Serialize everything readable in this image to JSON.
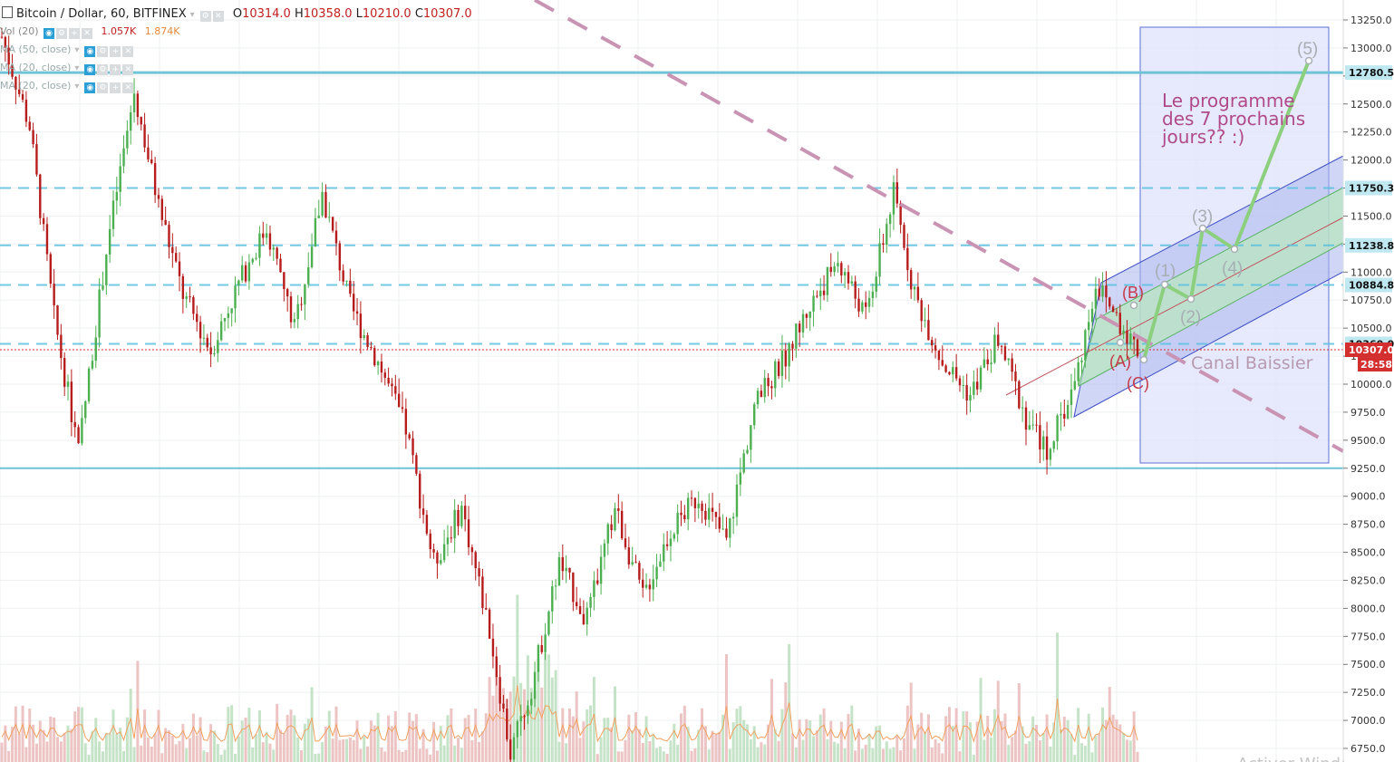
{
  "header": {
    "symbol": "Bitcoin / Dollar, 60, BITFINEX",
    "symbol_icon": "square-icon",
    "ohlc": {
      "o_label": "O",
      "o_value": "10314.0",
      "h_label": "H",
      "h_value": "10358.0",
      "l_label": "L",
      "l_value": "10210.0",
      "c_label": "C",
      "c_value": "10307.0"
    },
    "volume": {
      "label": "Vol (20)",
      "value1": "1.057K",
      "value2": "1.874K"
    },
    "indicators": [
      "MA (50, close)",
      "MA (20, close)",
      "MA (20, close)"
    ]
  },
  "colors": {
    "up": "#4caf50",
    "down": "#b71c1c",
    "level": "#5bc0de",
    "level_strong": "#6fc3d6",
    "trend": "#c994b4",
    "channel_fill": "#aab4ee",
    "channel_inner": "#b9e6c0",
    "box_fill": "#dfe3fb",
    "box_stroke": "#5d6fd6",
    "wave_grey": "#a7aeb3",
    "wave_red": "#c53a4a",
    "wave_path": "#8cd07f",
    "price_red": "#d32f2f"
  },
  "annotations": {
    "program_text_line1": "Le programme",
    "program_text_line2": "des 7 prochains",
    "program_text_line3": "jours?? :)",
    "canal": "Canal Baissier",
    "waves": [
      "(1)",
      "(2)",
      "(3)",
      "(4)",
      "(5)"
    ],
    "abc": [
      "(A)",
      "(B)",
      "(C)"
    ],
    "watermark": "Activer Windows"
  },
  "chart_data": {
    "type": "candlestick",
    "title": "Bitcoin / Dollar, 60, BITFINEX",
    "price_scale": {
      "range": [
        6550,
        13450
      ],
      "ticks": [
        13250,
        13000,
        12750,
        12500,
        12250,
        12000,
        11750,
        11500,
        11250,
        11000,
        10750,
        10500,
        10250,
        10000,
        9750,
        9500,
        9250,
        9000,
        8750,
        8500,
        8250,
        8000,
        7750,
        7500,
        7250,
        7000,
        6750
      ],
      "tick_labels": [
        "13250.0",
        "13000.0",
        "12750.0",
        "12500.0",
        "12250.0",
        "12000.0",
        "11750.0",
        "11500.0",
        "11250.0",
        "11000.0",
        "10750.0",
        "10500.0",
        "10250.0",
        "10000.0",
        "9750.0",
        "9500.0",
        "9250.0",
        "9000.0",
        "8750.0",
        "8500.0",
        "8250.0",
        "8000.0",
        "7750.0",
        "7500.0",
        "7250.0",
        "7000.0",
        "6750.0"
      ]
    },
    "horizontal_levels": [
      {
        "value": 12780.5,
        "label": "12780.5",
        "style": "solid"
      },
      {
        "value": 11750.3,
        "label": "11750.3",
        "style": "dashed"
      },
      {
        "value": 11238.8,
        "label": "11238.8",
        "style": "dashed"
      },
      {
        "value": 10884.8,
        "label": "10884.8",
        "style": "dashed"
      },
      {
        "value": 10360.0,
        "label": "10360.0",
        "style": "dashed"
      },
      {
        "value": 9250.0,
        "label": "",
        "style": "solid"
      }
    ],
    "last_price": {
      "value": 10307.0,
      "label": "10307.0",
      "countdown": "28:58"
    },
    "price_path": [
      [
        0,
        13100
      ],
      [
        8,
        12300
      ],
      [
        15,
        10600
      ],
      [
        22,
        9400
      ],
      [
        30,
        11200
      ],
      [
        38,
        12600
      ],
      [
        45,
        11600
      ],
      [
        52,
        10800
      ],
      [
        60,
        10300
      ],
      [
        68,
        10900
      ],
      [
        76,
        11400
      ],
      [
        84,
        10500
      ],
      [
        92,
        11700
      ],
      [
        100,
        10700
      ],
      [
        108,
        10200
      ],
      [
        116,
        9600
      ],
      [
        124,
        8400
      ],
      [
        132,
        8900
      ],
      [
        140,
        7800
      ],
      [
        146,
        6700
      ],
      [
        152,
        7300
      ],
      [
        160,
        8400
      ],
      [
        168,
        7900
      ],
      [
        176,
        8900
      ],
      [
        184,
        8100
      ],
      [
        192,
        8700
      ],
      [
        200,
        9000
      ],
      [
        208,
        8600
      ],
      [
        216,
        9800
      ],
      [
        224,
        10200
      ],
      [
        232,
        10700
      ],
      [
        240,
        11100
      ],
      [
        248,
        10600
      ],
      [
        256,
        11700
      ],
      [
        262,
        10800
      ],
      [
        270,
        10200
      ],
      [
        278,
        9900
      ],
      [
        286,
        10400
      ],
      [
        294,
        9700
      ],
      [
        300,
        9400
      ],
      [
        308,
        10000
      ],
      [
        314,
        10900
      ],
      [
        320,
        10600
      ],
      [
        326,
        10307
      ]
    ],
    "total_bars": 326,
    "wave_projection": [
      {
        "label": "(1)",
        "value": 10900
      },
      {
        "label": "(2)",
        "value": 10750
      },
      {
        "label": "(3)",
        "value": 11380
      },
      {
        "label": "(4)",
        "value": 11220
      },
      {
        "label": "(5)",
        "value": 12850
      }
    ],
    "corrective_waves": [
      {
        "label": "(A)",
        "value": 10360
      },
      {
        "label": "(B)",
        "value": 10700
      },
      {
        "label": "(C)",
        "value": 10200
      }
    ]
  }
}
